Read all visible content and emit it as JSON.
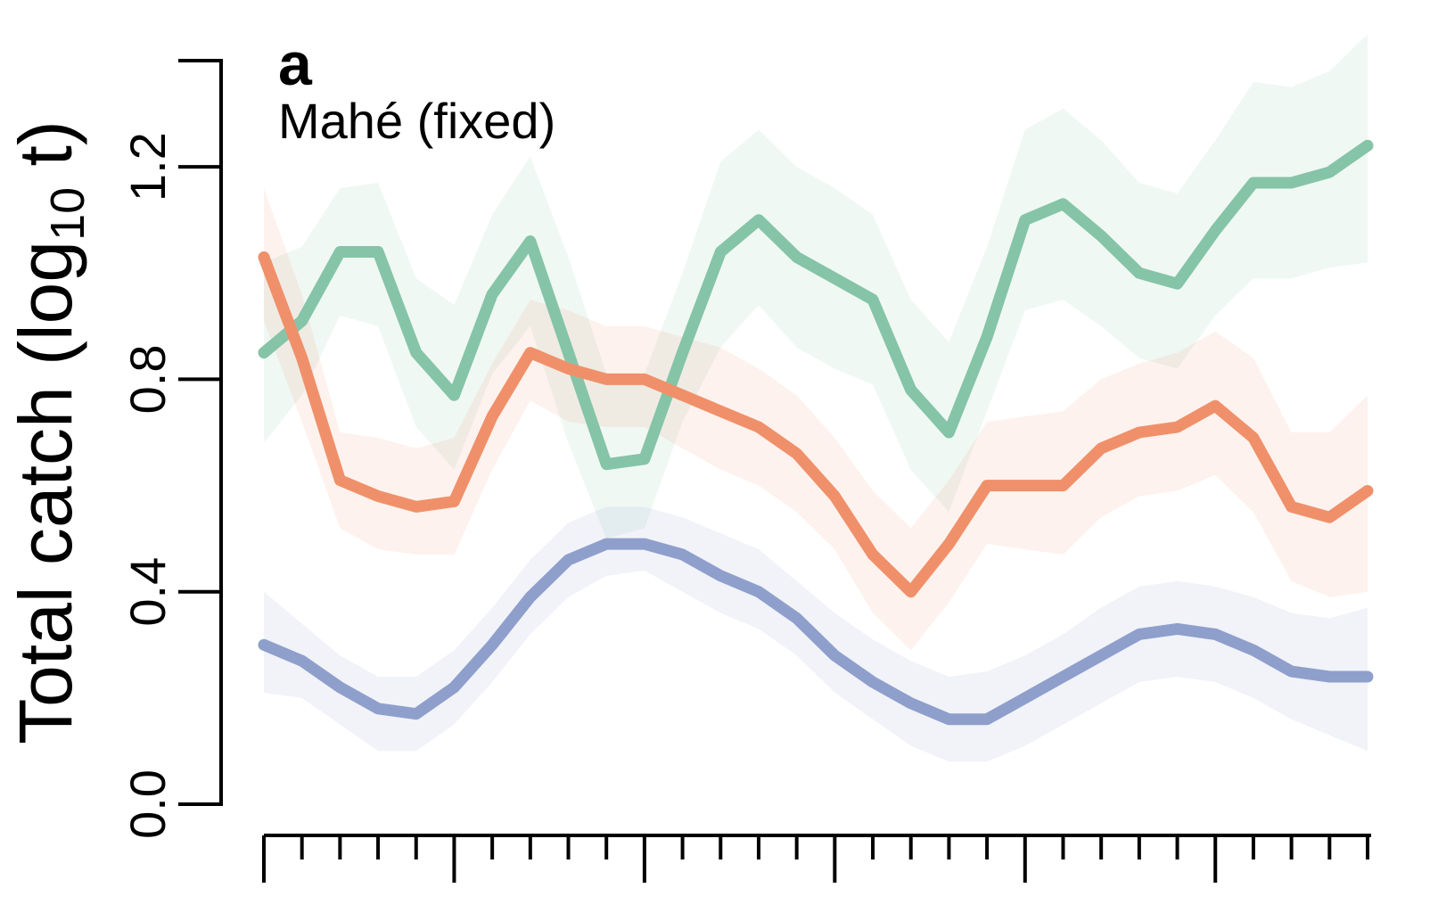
{
  "chart_data": {
    "type": "line",
    "panel_label": "a",
    "subtitle": "Mahé (fixed)",
    "title": "",
    "xlabel": "",
    "ylabel_main": "Total catch (log",
    "ylabel_sub": "10",
    "ylabel_tail": " t)",
    "ylim": [
      0,
      1.4
    ],
    "yticks": [
      0.0,
      0.4,
      0.8,
      1.2
    ],
    "ytick_labels": [
      "0.0",
      "0.4",
      "0.8",
      "1.2"
    ],
    "x": [
      1,
      2,
      3,
      4,
      5,
      6,
      7,
      8,
      9,
      10,
      11,
      12,
      13,
      14,
      15,
      16,
      17,
      18,
      19,
      20,
      21,
      22,
      23,
      24,
      25,
      26,
      27,
      28,
      29,
      30
    ],
    "xlim": [
      1,
      30
    ],
    "x_major_ticks": [
      1,
      6,
      11,
      16,
      21,
      26
    ],
    "grid": false,
    "series": [
      {
        "color": "#85c4a7",
        "band_color": "#85c4a7",
        "values": [
          0.85,
          0.91,
          1.04,
          1.04,
          0.85,
          0.77,
          0.96,
          1.06,
          0.85,
          0.64,
          0.65,
          0.85,
          1.04,
          1.1,
          1.03,
          0.99,
          0.95,
          0.78,
          0.7,
          0.88,
          1.1,
          1.13,
          1.07,
          1.0,
          0.98,
          1.08,
          1.17,
          1.17,
          1.19,
          1.24
        ],
        "lower": [
          0.68,
          0.77,
          0.92,
          0.9,
          0.71,
          0.63,
          0.81,
          0.9,
          0.68,
          0.5,
          0.52,
          0.72,
          0.86,
          0.94,
          0.86,
          0.82,
          0.79,
          0.63,
          0.55,
          0.74,
          0.93,
          0.95,
          0.9,
          0.84,
          0.82,
          0.92,
          0.99,
          0.99,
          1.01,
          1.02
        ],
        "upper": [
          1.02,
          1.05,
          1.16,
          1.17,
          0.99,
          0.94,
          1.11,
          1.22,
          1.03,
          0.81,
          0.81,
          1.0,
          1.21,
          1.27,
          1.2,
          1.16,
          1.11,
          0.95,
          0.87,
          1.05,
          1.27,
          1.31,
          1.25,
          1.17,
          1.15,
          1.25,
          1.36,
          1.35,
          1.38,
          1.45
        ]
      },
      {
        "color": "#f0906a",
        "band_color": "#f0906a",
        "values": [
          1.03,
          0.84,
          0.61,
          0.58,
          0.56,
          0.57,
          0.73,
          0.85,
          0.82,
          0.8,
          0.8,
          0.77,
          0.74,
          0.71,
          0.66,
          0.58,
          0.47,
          0.4,
          0.49,
          0.6,
          0.6,
          0.6,
          0.67,
          0.7,
          0.71,
          0.75,
          0.69,
          0.56,
          0.54,
          0.59
        ],
        "lower": [
          0.91,
          0.72,
          0.52,
          0.48,
          0.47,
          0.47,
          0.63,
          0.76,
          0.72,
          0.71,
          0.71,
          0.67,
          0.63,
          0.6,
          0.55,
          0.48,
          0.36,
          0.29,
          0.38,
          0.49,
          0.48,
          0.47,
          0.54,
          0.58,
          0.59,
          0.62,
          0.55,
          0.42,
          0.39,
          0.4
        ],
        "upper": [
          1.16,
          0.96,
          0.7,
          0.69,
          0.67,
          0.69,
          0.83,
          0.95,
          0.93,
          0.9,
          0.9,
          0.88,
          0.86,
          0.82,
          0.77,
          0.69,
          0.59,
          0.52,
          0.61,
          0.72,
          0.73,
          0.74,
          0.8,
          0.83,
          0.85,
          0.89,
          0.84,
          0.7,
          0.7,
          0.77
        ]
      },
      {
        "color": "#8f9fcb",
        "band_color": "#8f9fcb",
        "values": [
          0.3,
          0.27,
          0.22,
          0.18,
          0.17,
          0.22,
          0.3,
          0.39,
          0.46,
          0.49,
          0.49,
          0.47,
          0.43,
          0.4,
          0.35,
          0.28,
          0.23,
          0.19,
          0.16,
          0.16,
          0.2,
          0.24,
          0.28,
          0.32,
          0.33,
          0.32,
          0.29,
          0.25,
          0.24,
          0.24
        ],
        "lower": [
          0.21,
          0.2,
          0.15,
          0.1,
          0.1,
          0.15,
          0.23,
          0.32,
          0.39,
          0.43,
          0.44,
          0.4,
          0.36,
          0.33,
          0.28,
          0.21,
          0.16,
          0.11,
          0.08,
          0.08,
          0.11,
          0.15,
          0.19,
          0.23,
          0.24,
          0.23,
          0.2,
          0.16,
          0.13,
          0.1
        ],
        "upper": [
          0.4,
          0.34,
          0.28,
          0.24,
          0.24,
          0.29,
          0.37,
          0.46,
          0.53,
          0.56,
          0.56,
          0.54,
          0.51,
          0.48,
          0.42,
          0.36,
          0.31,
          0.27,
          0.24,
          0.25,
          0.28,
          0.32,
          0.37,
          0.41,
          0.42,
          0.41,
          0.39,
          0.36,
          0.35,
          0.37
        ]
      }
    ]
  }
}
